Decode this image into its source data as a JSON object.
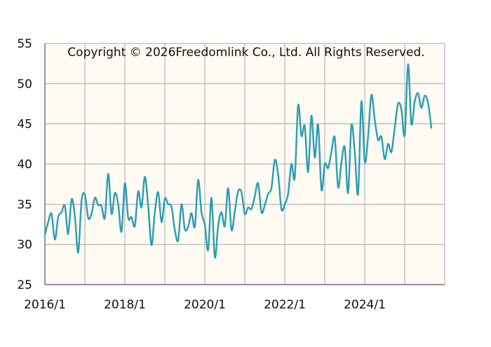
{
  "copyright": "Copyright © 2026Freedomlink Co., Ltd. All Rights Reserved.",
  "colors": {
    "line": "#2a9db5",
    "plot_background": "#fffbf3",
    "grid": "#aaaaaa",
    "axis": "#555555"
  },
  "chart_data": {
    "type": "line",
    "title": "",
    "xlabel": "",
    "ylabel": "",
    "ylim": [
      25,
      55
    ],
    "y_ticks": [
      25,
      30,
      35,
      40,
      45,
      50,
      55
    ],
    "x_tick_labels": [
      {
        "label": "2016/1",
        "month_index": 0
      },
      {
        "label": "2018/1",
        "month_index": 24
      },
      {
        "label": "2020/1",
        "month_index": 48
      },
      {
        "label": "2022/1",
        "month_index": 72
      },
      {
        "label": "2024/1",
        "month_index": 96
      }
    ],
    "x_grid_month_indices": [
      0,
      12,
      24,
      36,
      48,
      60,
      72,
      84,
      96,
      108,
      120
    ],
    "x_range_month_indices": [
      0,
      120
    ],
    "grid": true,
    "series": [
      {
        "x_start": "2016/1",
        "frequency": "monthly",
        "values": [
          31.2,
          32.8,
          33.8,
          30.6,
          33.4,
          34.0,
          34.8,
          31.3,
          35.6,
          33.5,
          29.0,
          35.4,
          36.2,
          33.3,
          33.8,
          35.8,
          34.9,
          34.8,
          33.3,
          38.8,
          33.8,
          36.4,
          35.0,
          31.6,
          37.6,
          33.3,
          33.4,
          32.3,
          36.6,
          34.6,
          38.4,
          34.8,
          29.9,
          34.0,
          36.5,
          32.8,
          35.7,
          35.0,
          34.7,
          31.8,
          30.5,
          35.0,
          31.9,
          32.2,
          33.9,
          32.2,
          38.0,
          34.0,
          32.5,
          29.3,
          35.8,
          28.4,
          32.3,
          34.0,
          32.3,
          37.0,
          31.8,
          34.1,
          36.6,
          36.5,
          33.8,
          34.6,
          34.4,
          36.0,
          37.6,
          34.0,
          34.9,
          36.3,
          37.0,
          40.5,
          38.7,
          34.4,
          35.0,
          36.3,
          40.0,
          38.3,
          47.3,
          43.5,
          44.7,
          39.0,
          46.0,
          40.8,
          44.9,
          36.8,
          40.0,
          39.5,
          41.5,
          43.3,
          37.1,
          40.2,
          42.1,
          36.4,
          44.8,
          41.5,
          36.3,
          47.8,
          40.3,
          43.4,
          48.6,
          45.5,
          43.0,
          43.4,
          40.6,
          42.5,
          41.5,
          44.5,
          47.5,
          46.8,
          43.6,
          52.4,
          45.0,
          47.8,
          48.8,
          47.0,
          48.5,
          47.6,
          44.5
        ]
      }
    ]
  }
}
